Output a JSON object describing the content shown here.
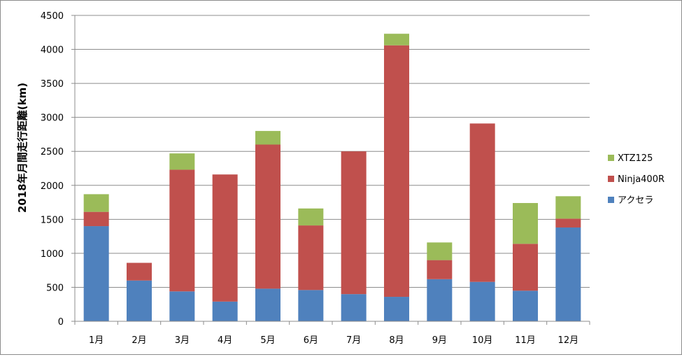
{
  "chart_data": {
    "type": "bar",
    "stacked": true,
    "title": "",
    "xlabel": "",
    "ylabel": "2018年月間走行距離(km)",
    "ylim": [
      0,
      4500
    ],
    "yticks": [
      0,
      500,
      1000,
      1500,
      2000,
      2500,
      3000,
      3500,
      4000,
      4500
    ],
    "grid": true,
    "legend_position": "right",
    "categories": [
      "1月",
      "2月",
      "3月",
      "4月",
      "5月",
      "6月",
      "7月",
      "8月",
      "9月",
      "10月",
      "11月",
      "12月"
    ],
    "series": [
      {
        "name": "アクセラ",
        "color": "#4f81bd",
        "values": [
          1400,
          600,
          440,
          290,
          480,
          460,
          400,
          360,
          620,
          580,
          450,
          1380
        ]
      },
      {
        "name": "Ninja400R",
        "color": "#c0504d",
        "values": [
          210,
          260,
          1790,
          1870,
          2120,
          950,
          2100,
          3700,
          280,
          2330,
          690,
          130
        ]
      },
      {
        "name": "XTZ125",
        "color": "#9bbb59",
        "values": [
          260,
          0,
          240,
          0,
          200,
          250,
          0,
          170,
          260,
          0,
          600,
          330
        ]
      }
    ]
  }
}
